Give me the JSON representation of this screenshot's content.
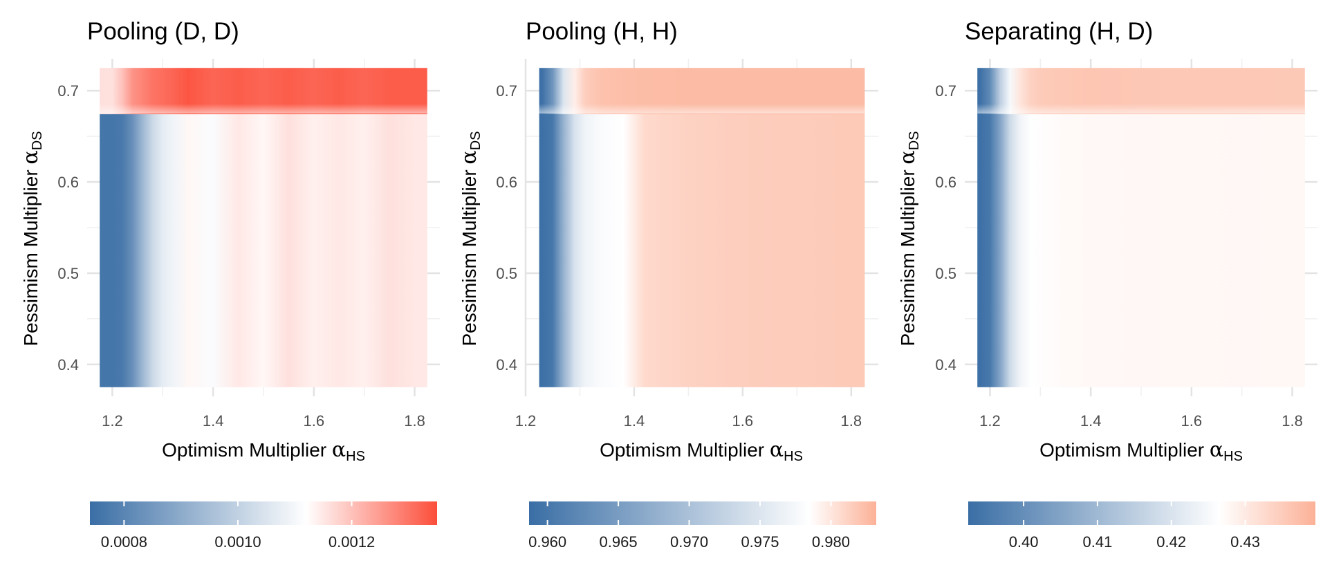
{
  "chart_data": [
    {
      "type": "heatmap",
      "title": "Pooling (D, D)",
      "xlabel": "Optimism Multiplier",
      "xlabel_symbol": "α",
      "xlabel_sub": "HS",
      "ylabel": "Pessimism Multiplier",
      "ylabel_symbol": "α",
      "ylabel_sub": "DS",
      "xlim": [
        1.15,
        1.85
      ],
      "ylim": [
        0.365,
        0.735
      ],
      "x_range": [
        1.175,
        1.825
      ],
      "y_range": [
        0.375,
        0.725
      ],
      "xticks": [
        1.2,
        1.4,
        1.6,
        1.8
      ],
      "xtick_labels": [
        "1.2",
        "1.4",
        "1.6",
        "1.8"
      ],
      "yticks": [
        0.4,
        0.5,
        0.6,
        0.7
      ],
      "ytick_labels": [
        "0.4",
        "0.5",
        "0.6",
        "0.7"
      ],
      "color_scale": {
        "min": 0.00074,
        "mid": 0.00112,
        "max": 0.00135,
        "low_color": "#3a6ea5",
        "mid_color": "#ffffff",
        "high_color": "#fc4e3a",
        "ticks": [
          0.0008,
          0.001,
          0.0012
        ],
        "tick_labels": [
          "0.0008",
          "0.0010",
          "0.0012"
        ]
      },
      "values_by_region": {
        "x_cols": [
          1.2,
          1.22,
          1.24,
          1.26,
          1.28,
          1.3,
          1.32,
          1.35,
          1.4,
          1.45,
          1.5,
          1.55,
          1.6,
          1.65,
          1.7,
          1.75,
          1.8
        ],
        "lower_band": [
          0.00076,
          0.00077,
          0.00083,
          0.00093,
          0.00102,
          0.00107,
          0.00109,
          0.00113,
          0.00111,
          0.00115,
          0.00113,
          0.00116,
          0.00114,
          0.00115,
          0.00114,
          0.00116,
          0.00115
        ],
        "upper_band": [
          0.00116,
          0.0012,
          0.00126,
          0.00128,
          0.0013,
          0.00131,
          0.00132,
          0.00134,
          0.00132,
          0.00133,
          0.00132,
          0.00133,
          0.00132,
          0.00133,
          0.00132,
          0.00133,
          0.00133
        ],
        "band_y": 0.675
      }
    },
    {
      "type": "heatmap",
      "title": "Pooling (H, H)",
      "xlabel": "Optimism Multiplier",
      "xlabel_symbol": "α",
      "xlabel_sub": "HS",
      "ylabel": "Pessimism Multiplier",
      "ylabel_symbol": "α",
      "ylabel_sub": "DS",
      "xlim": [
        1.2,
        1.85
      ],
      "ylim": [
        0.365,
        0.735
      ],
      "x_range": [
        1.225,
        1.825
      ],
      "y_range": [
        0.375,
        0.725
      ],
      "xticks": [
        1.2,
        1.4,
        1.6,
        1.8
      ],
      "xtick_labels": [
        "1.2",
        "1.4",
        "1.6",
        "1.8"
      ],
      "yticks": [
        0.4,
        0.5,
        0.6,
        0.7
      ],
      "ytick_labels": [
        "0.4",
        "0.5",
        "0.6",
        "0.7"
      ],
      "color_scale": {
        "min": 0.9587,
        "mid": 0.9785,
        "max": 0.9832,
        "low_color": "#3a6ea5",
        "mid_color": "#ffffff",
        "high_color": "#fcb197",
        "ticks": [
          0.96,
          0.965,
          0.97,
          0.975,
          0.98
        ],
        "tick_labels": [
          "0.960",
          "0.965",
          "0.970",
          "0.975",
          "0.980"
        ]
      },
      "values_by_region": {
        "x_cols": [
          1.23,
          1.25,
          1.27,
          1.29,
          1.31,
          1.34,
          1.38,
          1.42,
          1.5,
          1.6,
          1.7,
          1.8
        ],
        "lower_band": [
          0.959,
          0.96,
          0.968,
          0.9745,
          0.977,
          0.978,
          0.9785,
          0.9808,
          0.9812,
          0.9815,
          0.9816,
          0.9817
        ],
        "upper_band": [
          0.959,
          0.964,
          0.975,
          0.9795,
          0.9815,
          0.9822,
          0.9824,
          0.9825,
          0.9826,
          0.9826,
          0.9826,
          0.9826
        ],
        "band_y": 0.675
      }
    },
    {
      "type": "heatmap",
      "title": "Separating (H, D)",
      "xlabel": "Optimism Multiplier",
      "xlabel_symbol": "α",
      "xlabel_sub": "HS",
      "ylabel": "Pessimism Multiplier",
      "ylabel_symbol": "α",
      "ylabel_sub": "DS",
      "xlim": [
        1.15,
        1.85
      ],
      "ylim": [
        0.365,
        0.735
      ],
      "x_range": [
        1.175,
        1.825
      ],
      "y_range": [
        0.375,
        0.725
      ],
      "xticks": [
        1.2,
        1.4,
        1.6,
        1.8
      ],
      "xtick_labels": [
        "1.2",
        "1.4",
        "1.6",
        "1.8"
      ],
      "yticks": [
        0.4,
        0.5,
        0.6,
        0.7
      ],
      "ytick_labels": [
        "0.4",
        "0.5",
        "0.6",
        "0.7"
      ],
      "color_scale": {
        "min": 0.3925,
        "mid": 0.4265,
        "max": 0.4395,
        "low_color": "#3a6ea5",
        "mid_color": "#ffffff",
        "high_color": "#fcb197",
        "ticks": [
          0.4,
          0.41,
          0.42,
          0.43
        ],
        "tick_labels": [
          "0.40",
          "0.41",
          "0.42",
          "0.43"
        ]
      },
      "values_by_region": {
        "x_cols": [
          1.18,
          1.2,
          1.22,
          1.24,
          1.26,
          1.28,
          1.3,
          1.35,
          1.4,
          1.5,
          1.6,
          1.7,
          1.8
        ],
        "lower_band": [
          0.393,
          0.395,
          0.405,
          0.418,
          0.424,
          0.4262,
          0.4268,
          0.4274,
          0.4276,
          0.4278,
          0.4277,
          0.4278,
          0.4277
        ],
        "upper_band": [
          0.393,
          0.399,
          0.415,
          0.425,
          0.431,
          0.434,
          0.4352,
          0.4357,
          0.436,
          0.4358,
          0.4357,
          0.4356,
          0.4355
        ],
        "band_y": 0.675
      }
    }
  ]
}
